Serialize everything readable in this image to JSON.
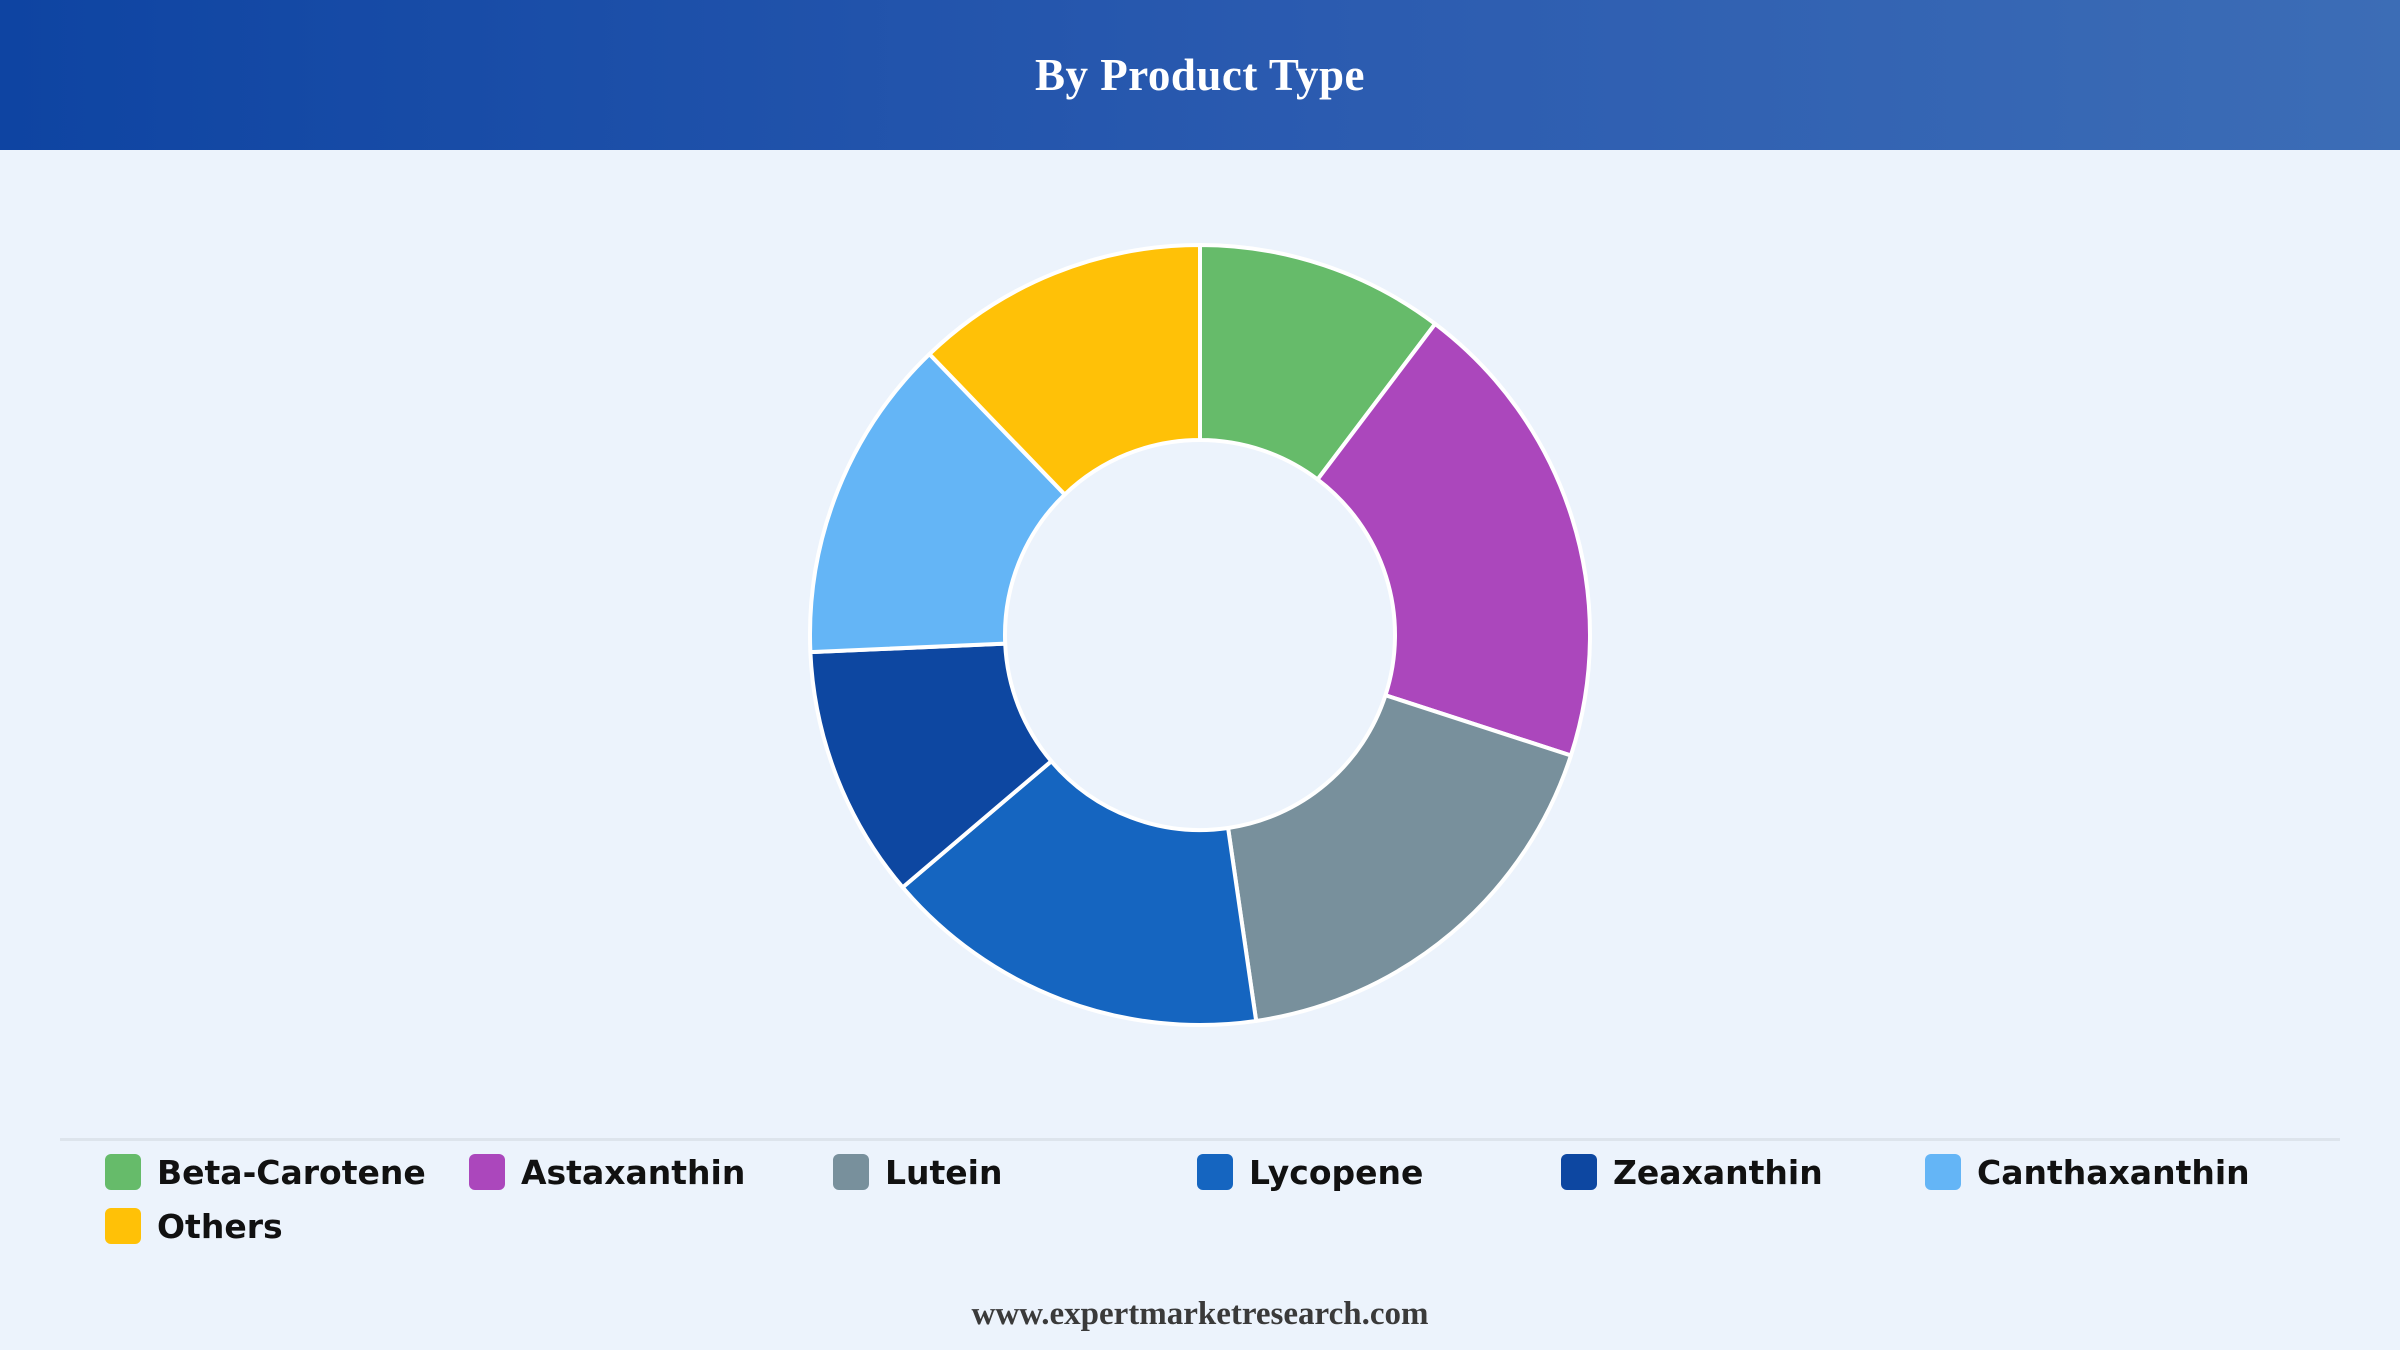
{
  "header": {
    "title": "By Product Type"
  },
  "chart_data": {
    "type": "pie",
    "style": "donut",
    "title": "By Product Type",
    "legend_position": "bottom",
    "categories": [
      "Beta-Carotene",
      "Astaxanthin",
      "Lutein",
      "Lycopene",
      "Zeaxanthin",
      "Canthaxanthin",
      "Others"
    ],
    "values": [
      10.3,
      19.7,
      17.7,
      16.1,
      10.5,
      13.5,
      12.2
    ],
    "colors": [
      "#66bb6a",
      "#ab47bc",
      "#78909c",
      "#1565c0",
      "#0d47a1",
      "#64b5f6",
      "#ffc107"
    ]
  },
  "footer": {
    "website": "www.expertmarketresearch.com"
  }
}
